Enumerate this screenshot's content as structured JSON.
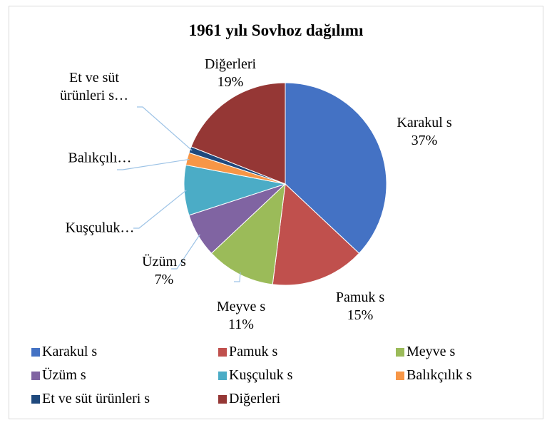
{
  "chart_data": {
    "type": "pie",
    "title": "1961 yılı Sovhoz dağılımı",
    "categories": [
      "Karakul s",
      "Pamuk s",
      "Meyve s",
      "Üzüm s",
      "Kuşçuluk s",
      "Balıkçılık s",
      "Et ve süt ürünleri s",
      "Diğerleri"
    ],
    "values": [
      37,
      15,
      11,
      7,
      8,
      2,
      1,
      19
    ],
    "data_labels": [
      "Karakul s",
      "Pamuk s",
      "Meyve s",
      "Üzüm s",
      "Kuşçuluk…",
      "Balıkçılı…",
      "Et ve süt ürünleri s…",
      "Diğerleri"
    ],
    "value_labels": [
      "37%",
      "15%",
      "11%",
      "7%",
      null,
      null,
      null,
      "19%"
    ],
    "colors": [
      "#4472c4",
      "#c0504d",
      "#9bbb59",
      "#8064a2",
      "#4bacc6",
      "#f79646",
      "#1f497d",
      "#953735"
    ],
    "legend": "bottom"
  }
}
